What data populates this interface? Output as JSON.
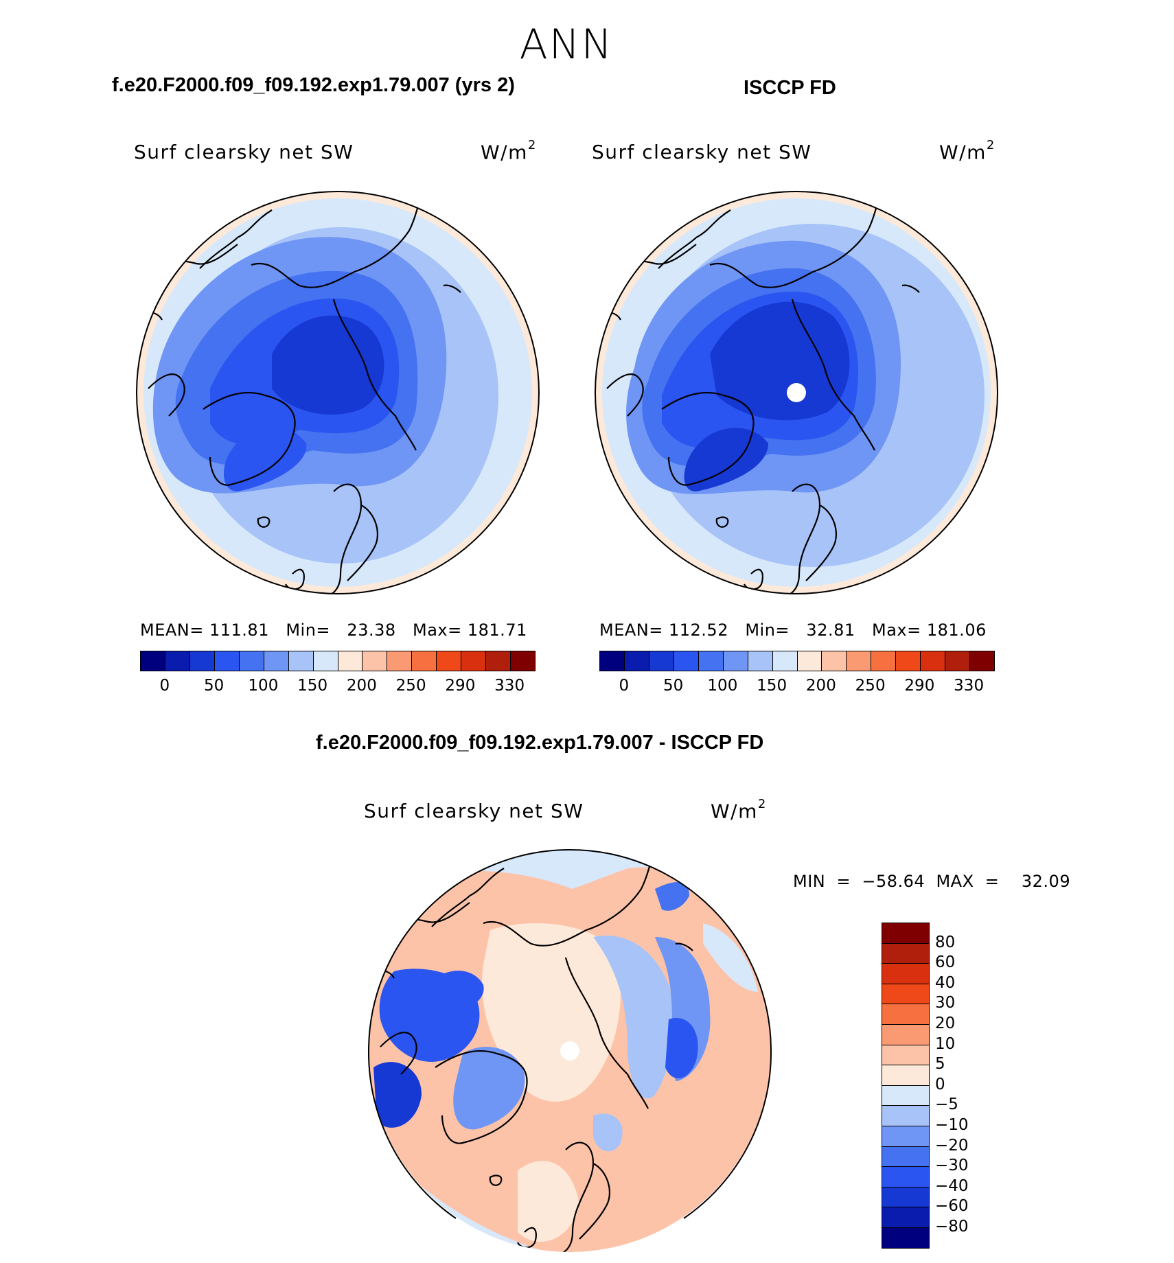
{
  "title": "ANN",
  "panels": [
    {
      "id": "model",
      "title": "f.e20.F2000.f09_f09.192.exp1.79.007 (yrs 2)",
      "var_label": "Surf clearsky net SW",
      "units_base": "W/m",
      "units_exp": "2",
      "stats": "MEAN= 111.81   Min=   23.38   Max= 181.71",
      "mean": 111.81,
      "min": 23.38,
      "max": 181.71
    },
    {
      "id": "obs",
      "title": "ISCCP FD",
      "var_label": "Surf clearsky net SW",
      "units_base": "W/m",
      "units_exp": "2",
      "stats": "MEAN= 112.52   Min=   32.81   Max= 181.06",
      "mean": 112.52,
      "min": 32.81,
      "max": 181.06
    },
    {
      "id": "diff",
      "title": "f.e20.F2000.f09_f09.192.exp1.79.007 - ISCCP FD",
      "var_label": "Surf clearsky net SW",
      "units_base": "W/m",
      "units_exp": "2",
      "stats": "MIN  =  −58.64  MAX  =    32.09",
      "min": -58.64,
      "max": 32.09
    }
  ],
  "abs_colorbar": {
    "colors": [
      "#00007f",
      "#0a1cae",
      "#1638d3",
      "#2a55f0",
      "#4472f0",
      "#6f95f5",
      "#a7c3f7",
      "#d7e8fb",
      "#fde9d9",
      "#fcc3a8",
      "#f99a72",
      "#f6713f",
      "#f04919",
      "#d93010",
      "#b01e0c",
      "#7f0000"
    ],
    "tick_labels": [
      "0",
      "50",
      "100",
      "150",
      "200",
      "250",
      "290",
      "330"
    ]
  },
  "diff_colorbar": {
    "colors": [
      "#7f0000",
      "#b01e0c",
      "#d93010",
      "#f04919",
      "#f6713f",
      "#f99a72",
      "#fcc3a8",
      "#fde9d9",
      "#d7e8fb",
      "#a7c3f7",
      "#6f95f5",
      "#4472f0",
      "#2a55f0",
      "#1638d3",
      "#0a1cae",
      "#00007f"
    ],
    "tick_labels": [
      "80",
      "60",
      "40",
      "30",
      "20",
      "10",
      "5",
      "0",
      "−5",
      "−10",
      "−20",
      "−30",
      "−40",
      "−60",
      "−80"
    ]
  },
  "colors": {
    "land_outline": "#000000",
    "missing_pole": "#ffffff"
  }
}
